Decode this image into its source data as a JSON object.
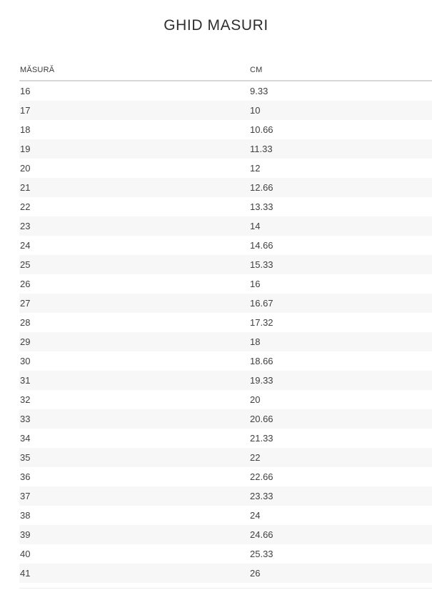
{
  "page": {
    "title": "GHID MASURI"
  },
  "table": {
    "columns": [
      {
        "label": "MĂSURĂ"
      },
      {
        "label": "CM"
      }
    ],
    "rows": [
      {
        "size": "16",
        "cm": "9.33"
      },
      {
        "size": "17",
        "cm": "10"
      },
      {
        "size": "18",
        "cm": "10.66"
      },
      {
        "size": "19",
        "cm": "11.33"
      },
      {
        "size": "20",
        "cm": "12"
      },
      {
        "size": "21",
        "cm": "12.66"
      },
      {
        "size": "22",
        "cm": "13.33"
      },
      {
        "size": "23",
        "cm": "14"
      },
      {
        "size": "24",
        "cm": "14.66"
      },
      {
        "size": "25",
        "cm": "15.33"
      },
      {
        "size": "26",
        "cm": "16"
      },
      {
        "size": "27",
        "cm": "16.67"
      },
      {
        "size": "28",
        "cm": "17.32"
      },
      {
        "size": "29",
        "cm": "18"
      },
      {
        "size": "30",
        "cm": "18.66"
      },
      {
        "size": "31",
        "cm": "19.33"
      },
      {
        "size": "32",
        "cm": "20"
      },
      {
        "size": "33",
        "cm": "20.66"
      },
      {
        "size": "34",
        "cm": "21.33"
      },
      {
        "size": "35",
        "cm": "22"
      },
      {
        "size": "36",
        "cm": "22.66"
      },
      {
        "size": "37",
        "cm": "23.33"
      },
      {
        "size": "38",
        "cm": "24"
      },
      {
        "size": "39",
        "cm": "24.66"
      },
      {
        "size": "40",
        "cm": "25.33"
      },
      {
        "size": "41",
        "cm": "26"
      }
    ]
  },
  "colors": {
    "stripe": "#f7f7f7",
    "header_border": "#d6d6d6",
    "text": "#3f3f3f",
    "title": "#2e2e2e"
  }
}
